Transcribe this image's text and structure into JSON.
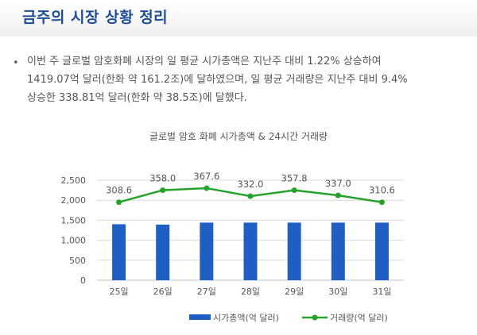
{
  "page": {
    "title": "금주의 시장 상황 정리",
    "bullet": "•",
    "paragraph_lines": [
      "이번 주 글로벌 암호화폐 시장의 일 평균 시가총액은 지난주 대비 1.22% 상승하여",
      "1419.07억 달러(한화 약 161.2조)에 달하였으며, 일 평균 거래량은 지난주 대비 9.4%",
      "상승한 338.81억 달러(한화 약 38.5조)에 달했다."
    ]
  },
  "colors": {
    "title": "#1f4e96",
    "bar": "#1f5fc4",
    "line": "#27a22c",
    "grid": "#d9d9d9",
    "text": "#555555"
  },
  "chart_data": {
    "type": "bar",
    "title": "글로벌 암호 화폐 시가총액 & 24시간 거래량",
    "categories": [
      "25일",
      "26일",
      "27일",
      "28일",
      "29일",
      "30일",
      "31일"
    ],
    "ylim": [
      0,
      2500
    ],
    "yticks": [
      0,
      500,
      1000,
      1500,
      2000,
      2500
    ],
    "ytick_labels": [
      "0",
      "500",
      "1,000",
      "1,500",
      "2,000",
      "2,500"
    ],
    "grid": true,
    "legend_position": "bottom",
    "series": [
      {
        "name": "시가총액(억 달러)",
        "type": "bar",
        "values": [
          1400,
          1390,
          1440,
          1440,
          1440,
          1440,
          1440
        ]
      },
      {
        "name": "거래량(억 달러)",
        "type": "line",
        "plotted_values": [
          1950,
          2250,
          2300,
          2100,
          2250,
          2120,
          1950
        ],
        "data_labels": [
          "308.6",
          "358.0",
          "367.6",
          "332.0",
          "357.8",
          "337.0",
          "310.6"
        ]
      }
    ]
  }
}
